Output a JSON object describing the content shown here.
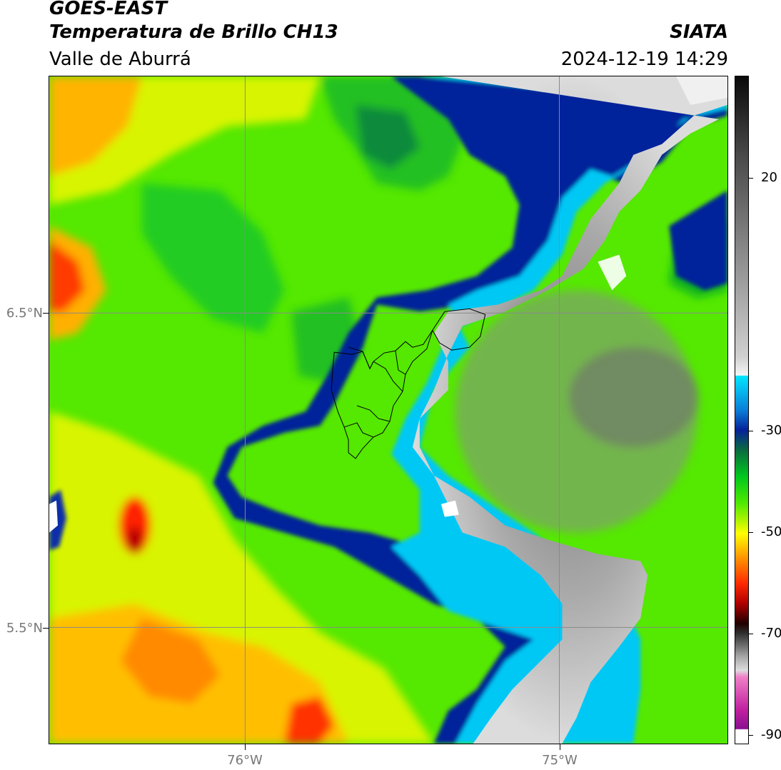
{
  "header": {
    "satellite": "GOES-EAST",
    "product": "Temperatura de Brillo CH13",
    "region": "Valle de Aburrá",
    "agency": "SIATA",
    "timestamp": "2024-12-19 14:29"
  },
  "map": {
    "lat_labels": [
      "6.5°N",
      "5.5°N"
    ],
    "lon_labels": [
      "76°W",
      "75°W"
    ]
  },
  "colorbar": {
    "tick_labels": [
      "20",
      "-30",
      "-50",
      "-70",
      "-90"
    ],
    "colors": {
      "cloud_coldest": "#f4f4f4",
      "cloud_gray": "#8a8a8a",
      "cyan": "#00e5ff",
      "dark_blue": "#061b8f",
      "green": "#00c81e",
      "lime": "#80ff00",
      "yellow": "#ffff00",
      "orange": "#ff9900",
      "red": "#e00000",
      "magenta": "#c020a0"
    }
  }
}
